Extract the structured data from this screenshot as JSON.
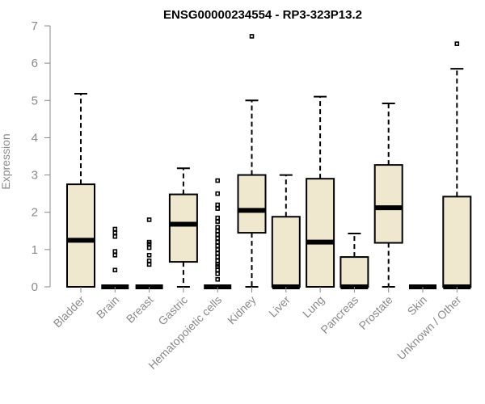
{
  "chart_data": {
    "type": "boxplot",
    "title": "ENSG00000234554 - RP3-323P13.2",
    "xlabel": "",
    "ylabel": "Expression",
    "ylim": [
      0,
      7
    ],
    "yticks": [
      0,
      1,
      2,
      3,
      4,
      5,
      6,
      7
    ],
    "grid": false,
    "box_color": "#efe8cf",
    "categories": [
      "Bladder",
      "Brain",
      "Breast",
      "Gastric",
      "Hematopoietic cells",
      "Kidney",
      "Liver",
      "Lung",
      "Pancreas",
      "Prostate",
      "Skin",
      "Unknown / Other"
    ],
    "boxes": [
      {
        "category": "Bladder",
        "min": 0,
        "q1": 0,
        "median": 1.25,
        "q3": 2.75,
        "max": 5.18,
        "outliers": []
      },
      {
        "category": "Brain",
        "min": 0,
        "q1": 0,
        "median": 0,
        "q3": 0,
        "max": 0,
        "outliers": [
          0.45,
          0.85,
          0.95,
          1.35,
          1.45,
          1.55
        ]
      },
      {
        "category": "Breast",
        "min": 0,
        "q1": 0,
        "median": 0,
        "q3": 0,
        "max": 0,
        "outliers": [
          0.6,
          0.7,
          0.85,
          1.05,
          1.15,
          1.2,
          1.8
        ]
      },
      {
        "category": "Gastric",
        "min": 0,
        "q1": 0.67,
        "median": 1.68,
        "q3": 2.48,
        "max": 3.18,
        "outliers": []
      },
      {
        "category": "Hematopoietic cells",
        "min": 0,
        "q1": 0,
        "median": 0,
        "q3": 0,
        "max": 0,
        "outliers": [
          0.2,
          0.35,
          0.45,
          0.55,
          0.6,
          0.7,
          0.8,
          0.9,
          1.0,
          1.1,
          1.2,
          1.3,
          1.4,
          1.5,
          1.6,
          1.75,
          1.85,
          2.1,
          2.2,
          2.5,
          2.85
        ]
      },
      {
        "category": "Kidney",
        "min": 0,
        "q1": 1.45,
        "median": 2.05,
        "q3": 3.0,
        "max": 5.0,
        "outliers": [
          6.72
        ]
      },
      {
        "category": "Liver",
        "min": 0,
        "q1": 0,
        "median": 0,
        "q3": 1.88,
        "max": 3.0,
        "outliers": []
      },
      {
        "category": "Lung",
        "min": 0,
        "q1": 0,
        "median": 1.2,
        "q3": 2.9,
        "max": 5.1,
        "outliers": []
      },
      {
        "category": "Pancreas",
        "min": 0,
        "q1": 0,
        "median": 0,
        "q3": 0.8,
        "max": 1.43,
        "outliers": []
      },
      {
        "category": "Prostate",
        "min": 0,
        "q1": 1.18,
        "median": 2.12,
        "q3": 3.27,
        "max": 4.92,
        "outliers": []
      },
      {
        "category": "Skin",
        "min": 0,
        "q1": 0,
        "median": 0,
        "q3": 0,
        "max": 0,
        "outliers": []
      },
      {
        "category": "Unknown / Other",
        "min": 0,
        "q1": 0,
        "median": 0,
        "q3": 2.42,
        "max": 5.85,
        "outliers": [
          6.52
        ]
      }
    ]
  }
}
